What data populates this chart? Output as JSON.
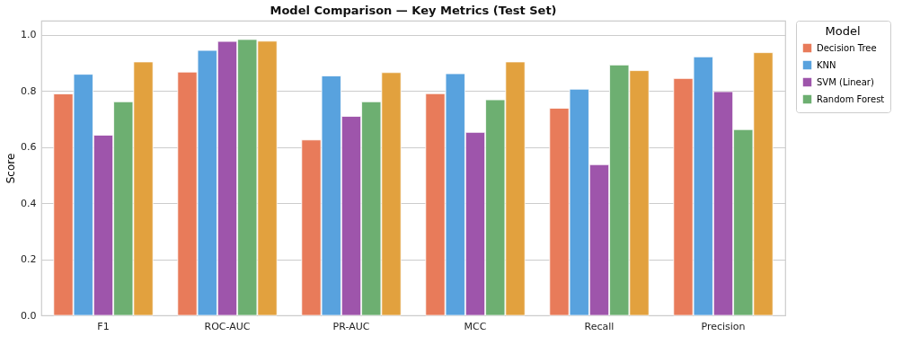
{
  "chart_data": {
    "type": "bar",
    "title": "Model Comparison — Key Metrics (Test Set)",
    "ylabel": "Score",
    "legend_title": "Model",
    "categories": [
      "F1",
      "ROC-AUC",
      "PR-AUC",
      "MCC",
      "Recall",
      "Precision"
    ],
    "series": [
      {
        "name": "Decision Tree",
        "color": "#e87b5a",
        "values": [
          0.789,
          0.867,
          0.625,
          0.79,
          0.738,
          0.844
        ]
      },
      {
        "name": "KNN",
        "color": "#58a2de",
        "values": [
          0.859,
          0.944,
          0.853,
          0.861,
          0.806,
          0.921
        ]
      },
      {
        "name": "SVM (Linear)",
        "color": "#9e55ab",
        "values": [
          0.642,
          0.976,
          0.709,
          0.652,
          0.537,
          0.797
        ]
      },
      {
        "name": "Random Forest",
        "color": "#6daf71",
        "values": [
          0.761,
          0.983,
          0.761,
          0.768,
          0.892,
          0.662
        ]
      },
      {
        "color": "#e2a13e",
        "values": [
          0.903,
          0.977,
          0.865,
          0.903,
          0.872,
          0.936
        ]
      }
    ],
    "ylim": [
      0,
      1.05
    ],
    "yticks": [
      {
        "value": 0,
        "label": "0.0"
      },
      0.2,
      0.4,
      0.6,
      0.8,
      {
        "value": 1,
        "label": "1.0"
      }
    ],
    "grid": "y",
    "legend": "top right"
  }
}
